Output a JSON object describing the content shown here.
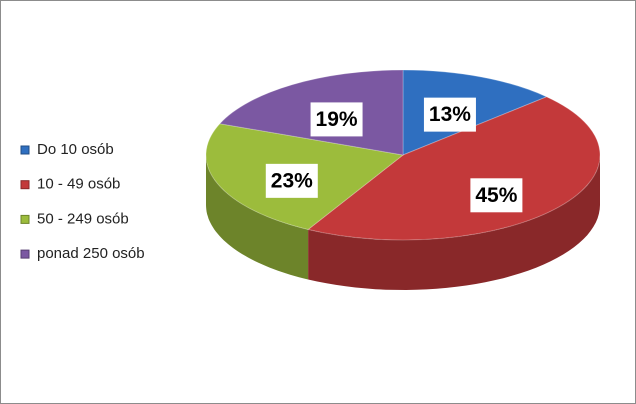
{
  "chart_data": {
    "type": "pie",
    "categories": [
      "Do 10 osób",
      "10 - 49 osób",
      "50 - 249 osób",
      "ponad 250 osób"
    ],
    "values": [
      13,
      45,
      23,
      19
    ],
    "value_labels": [
      "13%",
      "45%",
      "23%",
      "19%"
    ],
    "colors": [
      "#2f6fc0",
      "#c3393a",
      "#9cbc3c",
      "#7b58a2"
    ],
    "legend": "left"
  }
}
